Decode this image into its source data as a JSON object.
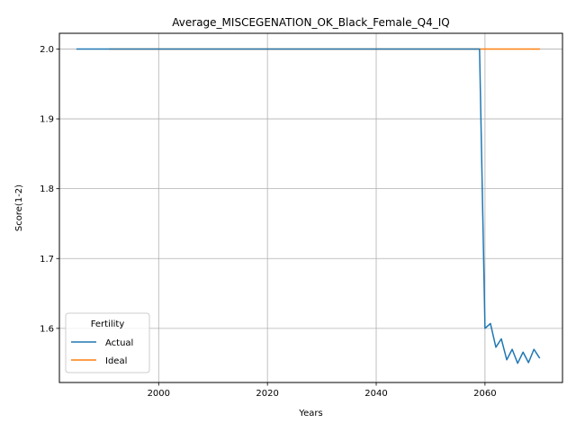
{
  "chart_data": {
    "type": "line",
    "title": "Average_MISCEGENATION_OK_Black_Female_Q4_IQ",
    "xlabel": "Years",
    "ylabel": "Score(1-2)",
    "xlim": [
      1981.75,
      2074.25
    ],
    "ylim": [
      1.5225,
      2.0225
    ],
    "xticks": [
      2000,
      2020,
      2040,
      2060
    ],
    "yticks": [
      1.6,
      1.7,
      1.8,
      1.9,
      2.0
    ],
    "xtick_labels": [
      "2000",
      "2020",
      "2040",
      "2060"
    ],
    "ytick_labels": [
      "1.6",
      "1.7",
      "1.8",
      "1.9",
      "2.0"
    ],
    "grid": true,
    "legend": {
      "title": "Fertility",
      "position": "lower-left"
    },
    "series": [
      {
        "name": "Actual",
        "color": "#1f77b4",
        "x": [
          1985,
          1991,
          2059,
          2060,
          2061,
          2062,
          2063,
          2064,
          2065,
          2066,
          2067,
          2068,
          2069,
          2070
        ],
        "y": [
          2.0,
          2.0,
          2.0,
          1.6,
          1.607,
          1.573,
          1.585,
          1.555,
          1.57,
          1.55,
          1.566,
          1.551,
          1.57,
          1.558
        ]
      },
      {
        "name": "Ideal",
        "color": "#ff7f0e",
        "x": [
          1991,
          2070
        ],
        "y": [
          2.0,
          2.0
        ]
      }
    ]
  }
}
